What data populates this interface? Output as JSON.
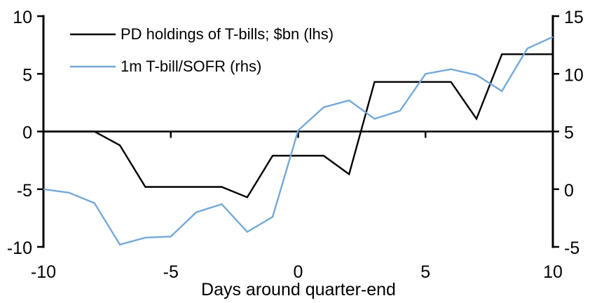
{
  "chart_data": {
    "type": "line",
    "title": "",
    "xlabel": "Days around quarter-end",
    "background": "#FFFFFF",
    "axis_color": "#000000",
    "grid": false,
    "legend_position": "top-left",
    "x_range": [
      -10,
      10
    ],
    "x_axis_ticks": [
      -10,
      -5,
      0,
      5,
      10
    ],
    "x_inner_ticks": [
      -5,
      0,
      5
    ],
    "left_axis": {
      "range": [
        -10,
        10
      ],
      "ticks": [
        10,
        5,
        0,
        -5,
        -10
      ]
    },
    "right_axis": {
      "range": [
        -5,
        15
      ],
      "ticks": [
        15,
        10,
        5,
        0,
        -5
      ]
    },
    "x": [
      -10,
      -9,
      -8,
      -7,
      -6,
      -5,
      -4,
      -3,
      -2,
      -1,
      0,
      1,
      2,
      3,
      4,
      5,
      6,
      7,
      8,
      9,
      10
    ],
    "series": [
      {
        "name": "PD holdings of T-bills; $bn (lhs)",
        "axis": "left",
        "color": "#000000",
        "values": [
          0,
          0,
          0,
          -1.2,
          -4.8,
          -4.8,
          -4.8,
          -4.8,
          -5.7,
          -2.1,
          -2.1,
          -2.1,
          -3.7,
          4.3,
          4.3,
          4.3,
          4.3,
          1.1,
          6.7,
          6.7,
          6.7
        ]
      },
      {
        "name": "1m T-bill/SOFR (rhs)",
        "axis": "right",
        "color": "#74A9D8",
        "values": [
          0,
          -0.3,
          -1.2,
          -4.8,
          -4.2,
          -4.1,
          -2.0,
          -1.3,
          -3.7,
          -2.4,
          5.1,
          7.1,
          7.7,
          6.1,
          6.8,
          10.0,
          10.4,
          9.9,
          8.5,
          12.2,
          13.2
        ]
      }
    ]
  }
}
